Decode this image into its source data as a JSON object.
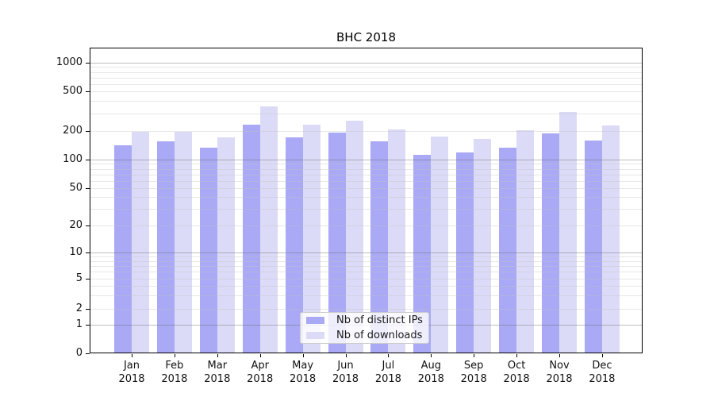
{
  "chart_data": {
    "type": "bar",
    "title": "BHC 2018",
    "categories": [
      "Jan",
      "Feb",
      "Mar",
      "Apr",
      "May",
      "Jun",
      "Jul",
      "Aug",
      "Sep",
      "Oct",
      "Nov",
      "Dec"
    ],
    "category_year": "2018",
    "series": [
      {
        "name": "Nb of distinct IPs",
        "color": "#a9a9f6",
        "values": [
          141,
          156,
          133,
          230,
          171,
          192,
          156,
          113,
          118,
          134,
          188,
          158
        ]
      },
      {
        "name": "Nb of downloads",
        "color": "#dbdbf8",
        "values": [
          197,
          197,
          172,
          355,
          230,
          252,
          206,
          175,
          165,
          205,
          310,
          226
        ]
      }
    ],
    "yscale": "symlog",
    "yticks": [
      0,
      1,
      2,
      5,
      10,
      20,
      50,
      100,
      200,
      500,
      1000
    ],
    "ylim": [
      0,
      1500
    ],
    "grid": true,
    "legend_position": "lower-center"
  },
  "colors": {
    "major_grid": "rgba(110,110,110,0.45)",
    "minor_grid": "rgba(195,195,195,0.40)",
    "axis": "#000000",
    "legend_border": "#cccccc"
  }
}
